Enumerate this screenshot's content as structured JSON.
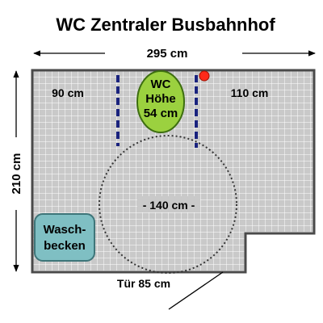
{
  "title": "WC Zentraler Busbahnhof",
  "dimensions": {
    "width": "295 cm",
    "height": "210 cm"
  },
  "room": {
    "left_clearance": "90 cm",
    "right_clearance": "110 cm",
    "turning_circle": "- 140 cm -",
    "door": "Tür 85 cm"
  },
  "toilet": {
    "line1": "WC",
    "line2": "Höhe",
    "line3": "54 cm"
  },
  "sink": {
    "line1": "Wasch-",
    "line2": "becken"
  },
  "colors": {
    "floor": "#c9c9c9",
    "grid": "#ffffff",
    "wall": "#4a4a4a",
    "toilet": "#9bd13f",
    "sink": "#7fbfc3",
    "rail": "#1a237e",
    "emergency": "#ff2a1a"
  }
}
